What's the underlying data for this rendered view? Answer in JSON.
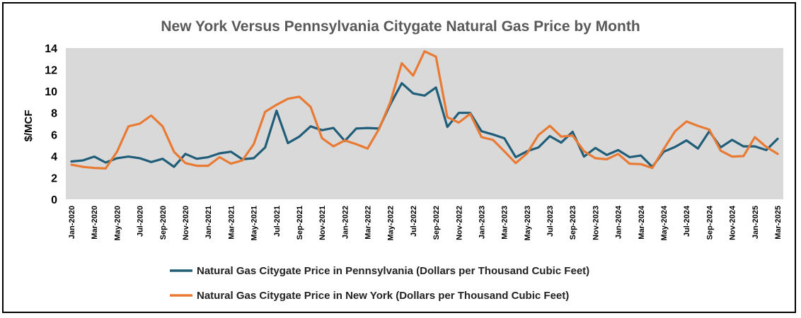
{
  "chart_data": {
    "type": "line",
    "title": "New York Versus Pennsylvania Citygate Natural Gas Price by Month",
    "xlabel": "",
    "ylabel": "$/MCF",
    "ylim": [
      0,
      14
    ],
    "yticks": [
      0,
      2,
      4,
      6,
      8,
      10,
      12,
      14
    ],
    "grid": false,
    "legend_position": "bottom",
    "plot_background": "#d9d9d9",
    "x": [
      "Jan-2020",
      "Feb-2020",
      "Mar-2020",
      "Apr-2020",
      "May-2020",
      "Jun-2020",
      "Jul-2020",
      "Aug-2020",
      "Sep-2020",
      "Oct-2020",
      "Nov-2020",
      "Dec-2020",
      "Jan-2021",
      "Feb-2021",
      "Mar-2021",
      "Apr-2021",
      "May-2021",
      "Jun-2021",
      "Jul-2021",
      "Aug-2021",
      "Sep-2021",
      "Oct-2021",
      "Nov-2021",
      "Dec-2021",
      "Jan-2022",
      "Feb-2022",
      "Mar-2022",
      "Apr-2022",
      "May-2022",
      "Jun-2022",
      "Jul-2022",
      "Aug-2022",
      "Sep-2022",
      "Oct-2022",
      "Nov-2022",
      "Dec-2022",
      "Jan-2023",
      "Feb-2023",
      "Mar-2023",
      "Apr-2023",
      "May-2023",
      "Jun-2023",
      "Jul-2023",
      "Aug-2023",
      "Sep-2023",
      "Oct-2023",
      "Nov-2023",
      "Dec-2023",
      "Jan-2024",
      "Feb-2024",
      "Mar-2024",
      "Apr-2024",
      "May-2024",
      "Jun-2024",
      "Jul-2024",
      "Aug-2024",
      "Sep-2024",
      "Oct-2024",
      "Nov-2024",
      "Dec-2024",
      "Jan-2025",
      "Feb-2025",
      "Mar-2025"
    ],
    "xtick_labels": [
      "Jan-2020",
      "Mar-2020",
      "May-2020",
      "Jul-2020",
      "Sep-2020",
      "Nov-2020",
      "Jan-2021",
      "Mar-2021",
      "May-2021",
      "Jul-2021",
      "Sep-2021",
      "Nov-2021",
      "Jan-2022",
      "Mar-2022",
      "May-2022",
      "Jul-2022",
      "Sep-2022",
      "Nov-2022",
      "Jan-2023",
      "Mar-2023",
      "May-2023",
      "Jul-2023",
      "Sep-2023",
      "Nov-2023",
      "Jan-2024",
      "Mar-2024",
      "May-2024",
      "Jul-2024",
      "Sep-2024",
      "Nov-2024",
      "Jan-2025",
      "Mar-2025"
    ],
    "series": [
      {
        "name": "Natural Gas Citygate Price in Pennsylvania (Dollars per Thousand Cubic Feet)",
        "color": "#1f5d78",
        "values": [
          3.5,
          3.6,
          3.95,
          3.4,
          3.8,
          3.95,
          3.8,
          3.45,
          3.75,
          3.0,
          4.2,
          3.75,
          3.9,
          4.25,
          4.4,
          3.7,
          3.8,
          4.8,
          8.2,
          5.2,
          5.8,
          6.75,
          6.4,
          6.6,
          5.4,
          6.55,
          6.6,
          6.55,
          8.8,
          10.75,
          9.8,
          9.6,
          10.35,
          6.7,
          8.0,
          8.0,
          6.3,
          6.0,
          5.65,
          3.9,
          4.45,
          4.8,
          5.85,
          5.25,
          6.25,
          3.95,
          4.75,
          4.1,
          4.55,
          3.9,
          4.05,
          3.0,
          4.4,
          4.85,
          5.45,
          4.7,
          6.3,
          4.8,
          5.5,
          4.9,
          4.9,
          4.55,
          5.6
        ]
      },
      {
        "name": "Natural Gas Citygate Price in New York (Dollars per Thousand Cubic Feet)",
        "color": "#e97a33",
        "values": [
          3.2,
          3.0,
          2.9,
          2.85,
          4.4,
          6.75,
          7.0,
          7.75,
          6.75,
          4.4,
          3.35,
          3.1,
          3.1,
          3.9,
          3.3,
          3.6,
          5.1,
          8.1,
          8.75,
          9.3,
          9.5,
          8.55,
          5.65,
          4.9,
          5.45,
          5.1,
          4.7,
          6.5,
          9.0,
          12.6,
          11.45,
          13.7,
          13.2,
          7.6,
          7.1,
          7.9,
          5.75,
          5.5,
          4.45,
          3.35,
          4.25,
          5.95,
          6.8,
          5.8,
          5.9,
          4.45,
          3.8,
          3.7,
          4.2,
          3.3,
          3.25,
          2.9,
          4.65,
          6.3,
          7.2,
          6.8,
          6.45,
          4.5,
          3.95,
          4.0,
          5.75,
          4.85,
          4.2
        ]
      }
    ]
  }
}
